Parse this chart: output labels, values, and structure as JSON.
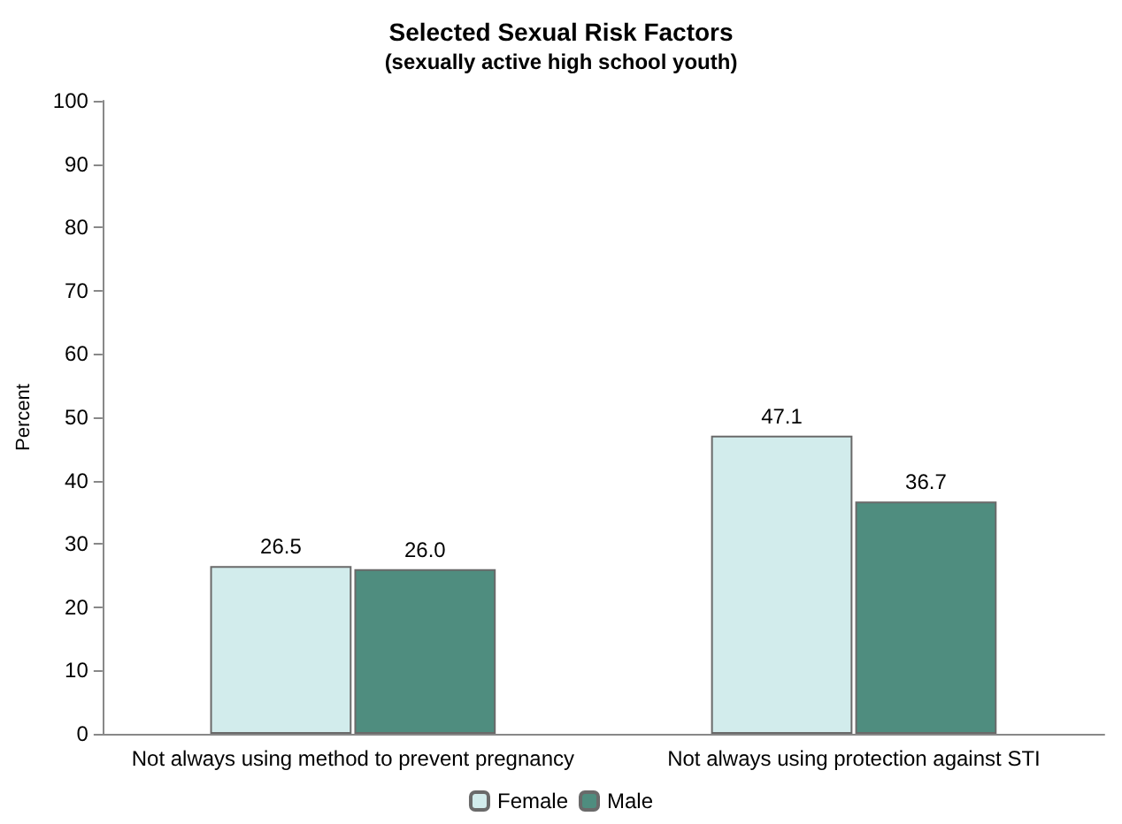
{
  "chart_data": {
    "type": "bar",
    "title": "Selected Sexual Risk Factors",
    "subtitle": "(sexually active high school youth)",
    "ylabel": "Percent",
    "categories": [
      "Not always using method to prevent pregnancy",
      "Not always using protection against STI"
    ],
    "series": [
      {
        "name": "Female",
        "color": "#d2ecec",
        "values": [
          26.5,
          47.1
        ],
        "value_labels": [
          "26.5",
          "47.1"
        ]
      },
      {
        "name": "Male",
        "color": "#4f8d7f",
        "values": [
          26.0,
          36.7
        ],
        "value_labels": [
          "26.0",
          "36.7"
        ]
      }
    ],
    "ylim": [
      0,
      100
    ],
    "yticks": [
      0,
      10,
      20,
      30,
      40,
      50,
      60,
      70,
      80,
      90,
      100
    ],
    "grid": false,
    "legend": "bottom"
  }
}
